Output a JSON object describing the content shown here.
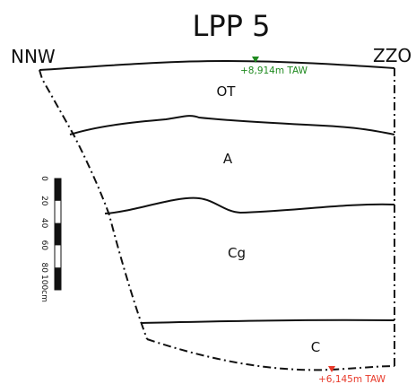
{
  "title": "LPP 5",
  "orientation": {
    "left": "NNW",
    "right": "ZZO"
  },
  "horizons": [
    {
      "label": "OT"
    },
    {
      "label": "A"
    },
    {
      "label": "Cg"
    },
    {
      "label": "C"
    }
  ],
  "elevations": {
    "top": {
      "text": "+8,914m TAW",
      "color": "#1f8a1f"
    },
    "bottom": {
      "text": "+6,145m TAW",
      "color": "#e8392a"
    }
  },
  "scale_bar": {
    "ticks": [
      "0",
      "20",
      "40",
      "60",
      "80",
      "100cm"
    ],
    "fill_color": "#111111"
  },
  "line_color": "#111111"
}
